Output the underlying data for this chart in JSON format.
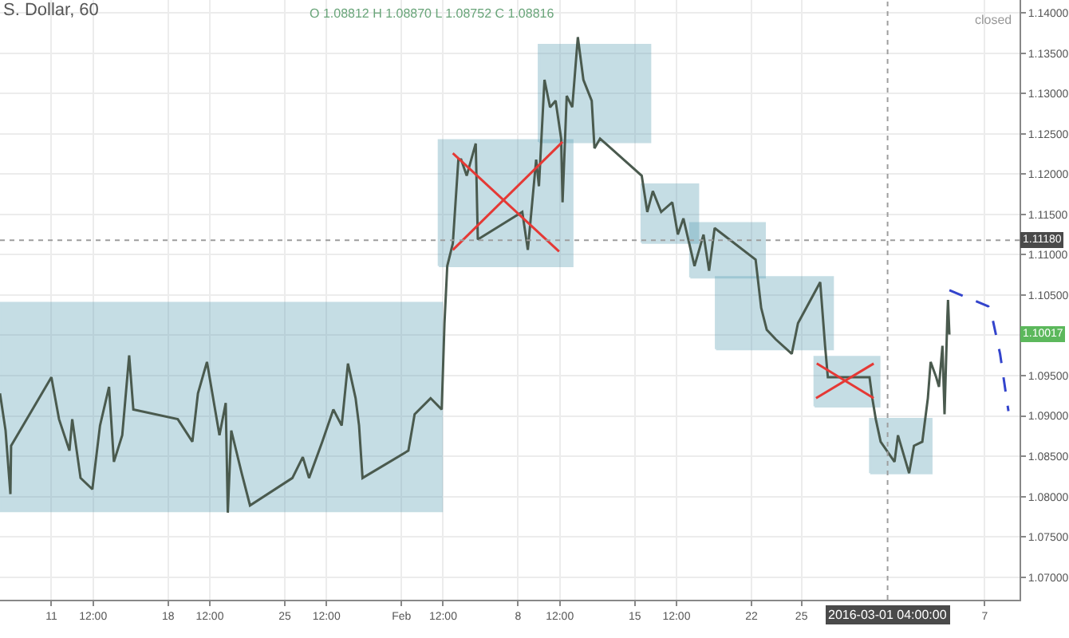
{
  "chart_data": {
    "type": "line",
    "title": "S. Dollar, 60",
    "annotations": [
      "O 1.08812 H 1.08870 L 1.08752 C 1.08816",
      "closed",
      "1.10017"
    ],
    "series": [
      {
        "color": "#4a5a4e",
        "x": [
          "2016-01-07T22:00",
          "2016-01-08T06:00",
          "2016-01-08T13:00",
          "2016-01-08T14:00",
          "2016-01-11T00:00",
          "2016-01-11T11:00",
          "2016-01-12T02:00",
          "2016-01-12T06:00",
          "2016-01-12T18:00",
          "2016-01-13T11:00",
          "2016-01-13T22:00",
          "2016-01-14T11:00",
          "2016-01-14T18:00",
          "2016-01-15T06:00",
          "2016-01-15T16:00",
          "2016-01-15T22:00",
          "2016-01-18T14:00",
          "2016-01-19T11:00",
          "2016-01-19T19:00",
          "2016-01-20T08:00",
          "2016-01-21T02:00",
          "2016-01-21T11:00",
          "2016-01-21T14:00",
          "2016-01-21T19:00",
          "2016-01-22T10:00",
          "2016-01-22T22:00",
          "2016-01-25T11:00",
          "2016-01-26T02:00",
          "2016-01-26T11:00",
          "2016-01-27T06:00",
          "2016-01-27T22:00",
          "2016-01-28T10:00",
          "2016-01-28T19:00",
          "2016-01-29T06:00",
          "2016-01-29T11:00",
          "2016-01-29T16:00",
          "2016-02-01T10:00",
          "2016-02-01T19:00",
          "2016-02-02T18:00",
          "2016-02-03T10:00",
          "2016-02-03T14:00",
          "2016-02-03T18:00",
          "2016-02-04T02:00",
          "2016-02-04T10:00",
          "2016-02-04T14:00",
          "2016-02-04T22:00",
          "2016-02-05T11:00",
          "2016-02-05T14:00",
          "2016-02-08T06:00",
          "2016-02-08T14:00",
          "2016-02-09T02:00",
          "2016-02-09T06:00",
          "2016-02-09T14:00",
          "2016-02-09T22:00",
          "2016-02-10T06:00",
          "2016-02-10T14:00",
          "2016-02-10T16:00",
          "2016-02-10T22:00",
          "2016-02-11T06:00",
          "2016-02-11T14:00",
          "2016-02-11T22:00",
          "2016-02-12T10:00",
          "2016-02-12T14:00",
          "2016-02-12T22:00",
          "2016-02-15T10:00",
          "2016-02-15T18:00",
          "2016-02-16T02:00",
          "2016-02-16T14:00",
          "2016-02-17T06:00",
          "2016-02-17T14:00",
          "2016-02-17T22:00",
          "2016-02-18T14:00",
          "2016-02-19T03:00",
          "2016-02-19T11:00",
          "2016-02-19T19:00",
          "2016-02-22T06:00",
          "2016-02-22T14:00",
          "2016-02-22T22:00",
          "2016-02-23T11:00",
          "2016-02-24T10:00",
          "2016-02-24T19:00",
          "2016-02-26T03:00",
          "2016-02-26T10:00",
          "2016-02-26T14:00",
          "2016-02-29T02:00",
          "2016-02-29T06:00",
          "2016-02-29T11:00",
          "2016-02-29T18:00",
          "2016-03-01T14:00",
          "2016-03-01T19:00",
          "2016-03-02T11:00",
          "2016-03-02T18:00",
          "2016-03-03T06:00",
          "2016-03-03T14:00",
          "2016-03-03T18:00",
          "2016-03-04T02:00",
          "2016-03-04T06:00",
          "2016-03-04T11:00",
          "2016-03-04T14:00",
          "2016-03-04T18:00",
          "2016-03-04T19:00",
          "2016-03-04T21:00"
        ],
        "values": [
          1.0928,
          1.0882,
          1.0803,
          1.0863,
          1.0948,
          1.0896,
          1.0857,
          1.0896,
          1.0823,
          1.0809,
          1.0888,
          1.0936,
          1.0843,
          1.0876,
          1.0975,
          1.0908,
          1.0896,
          1.0868,
          1.0928,
          1.0967,
          1.0876,
          1.0916,
          1.078,
          1.0882,
          1.0829,
          1.0789,
          1.0823,
          1.0849,
          1.0823,
          1.0868,
          1.0908,
          1.0888,
          1.0965,
          1.0922,
          1.0888,
          1.0823,
          1.0857,
          1.0902,
          1.0922,
          1.0908,
          1.1015,
          1.1086,
          1.1114,
          1.1218,
          1.1218,
          1.1198,
          1.1238,
          1.1119,
          1.1153,
          1.1106,
          1.1218,
          1.1185,
          1.1317,
          1.1283,
          1.1291,
          1.1244,
          1.1165,
          1.1297,
          1.1283,
          1.137,
          1.1317,
          1.1291,
          1.1232,
          1.1244,
          1.1198,
          1.1153,
          1.1179,
          1.1153,
          1.1165,
          1.1125,
          1.1145,
          1.1086,
          1.1125,
          1.108,
          1.1133,
          1.1094,
          1.1034,
          1.1007,
          1.0995,
          1.0977,
          1.1015,
          1.1066,
          1.0987,
          1.0948,
          1.0948,
          1.0922,
          1.0896,
          1.0868,
          1.0843,
          1.0876,
          1.0829,
          1.0863,
          1.0868,
          1.0922,
          1.0967,
          1.0948,
          1.0936,
          1.0987,
          1.0902,
          1.1021,
          1.1044,
          1.1001
        ]
      },
      {
        "color": "#e53935",
        "x": [
          "2016-02-04T02:00",
          "2016-02-10T11:00",
          null,
          "2016-02-04T02:00",
          "2016-02-10T16:00",
          null,
          "2016-02-25T22:00",
          "2016-02-29T08:00",
          null,
          "2016-02-25T21:00",
          "2016-02-29T08:00"
        ],
        "values": [
          1.1226,
          1.1104,
          null,
          1.1106,
          1.124,
          null,
          1.0965,
          1.0922,
          null,
          1.0922,
          1.0965
        ]
      },
      {
        "color": "#3344cc",
        "line_style": "dashed",
        "x": [
          "2016-03-04T21:00",
          "2016-03-07T05:00",
          "2016-03-07T11:00",
          "2016-03-07T22:00",
          "2016-03-08T10:00"
        ],
        "values": [
          1.1056,
          1.1036,
          1.1021,
          1.0977,
          1.0906
        ]
      },
      {
        "type": "area",
        "color": "#5b9fb5",
        "x": [
          "2016-01-07T22:00",
          "2016-02-03T10:00",
          "2016-02-03T10:00",
          "2016-01-07T22:00",
          "2016-01-07T22:00"
        ],
        "values": [
          1.0782,
          1.0782,
          1.104,
          1.104,
          1.0782
        ]
      },
      {
        "type": "area",
        "color": "#5b9fb5",
        "x": [
          "2016-02-03T06:00",
          "2016-02-11T06:00",
          "2016-02-11T06:00",
          "2016-02-03T06:00",
          "2016-02-03T06:00"
        ],
        "values": [
          1.1086,
          1.1086,
          1.1242,
          1.1242,
          1.1086
        ]
      },
      {
        "type": "area",
        "color": "#5b9fb5",
        "x": [
          "2016-02-09T06:00",
          "2016-02-15T22:00",
          "2016-02-15T22:00",
          "2016-02-09T06:00",
          "2016-02-09T06:00"
        ],
        "values": [
          1.124,
          1.124,
          1.136,
          1.136,
          1.124
        ]
      },
      {
        "type": "area",
        "color": "#5b9fb5",
        "x": [
          "2016-02-15T10:00",
          "2016-02-18T19:00",
          "2016-02-18T19:00",
          "2016-02-15T10:00",
          "2016-02-15T10:00"
        ],
        "values": [
          1.1115,
          1.1115,
          1.1187,
          1.1187,
          1.1115
        ]
      },
      {
        "type": "area",
        "color": "#5b9fb5",
        "x": [
          "2016-02-18T08:00",
          "2016-02-22T19:00",
          "2016-02-22T19:00",
          "2016-02-18T08:00",
          "2016-02-18T08:00"
        ],
        "values": [
          1.1072,
          1.1072,
          1.1139,
          1.1139,
          1.1072
        ]
      },
      {
        "type": "area",
        "color": "#5b9fb5",
        "x": [
          "2016-02-19T21:00",
          "2016-02-26T21:00",
          "2016-02-26T21:00",
          "2016-02-19T21:00",
          "2016-02-19T21:00"
        ],
        "values": [
          1.0983,
          1.0983,
          1.1072,
          1.1072,
          1.0983
        ]
      },
      {
        "type": "area",
        "color": "#5b9fb5",
        "x": [
          "2016-02-25T19:00",
          "2016-02-29T16:00",
          "2016-02-29T16:00",
          "2016-02-25T19:00",
          "2016-02-25T19:00"
        ],
        "values": [
          1.0912,
          1.0912,
          1.0973,
          1.0973,
          1.0912
        ]
      },
      {
        "type": "area",
        "color": "#5b9fb5",
        "x": [
          "2016-02-29T03:00",
          "2016-03-03T19:00",
          "2016-03-03T19:00",
          "2016-02-29T03:00",
          "2016-02-29T03:00"
        ],
        "values": [
          1.0829,
          1.0829,
          1.0896,
          1.0896,
          1.0829
        ]
      }
    ],
    "ref_lines": [
      {
        "axis": "y",
        "value": 1.1118,
        "label": "1.11180",
        "color": "#9e9e9e",
        "line_style": "dotted"
      },
      {
        "axis": "x",
        "value": "2016-03-01T04:00",
        "label": "2016-03-01 04:00:00",
        "color": "#9e9e9e",
        "line_style": "dotted"
      }
    ],
    "xlim": [
      "2016-01-07T22:00",
      "2016-03-09T02:00"
    ],
    "xticks": [
      {
        "value": "2016-01-11",
        "label": "11"
      },
      {
        "value": "2016-01-13T12:00",
        "label": "12:00"
      },
      {
        "value": "2016-01-18",
        "label": "18"
      },
      {
        "value": "2016-01-20T12:00",
        "label": "12:00"
      },
      {
        "value": "2016-01-25",
        "label": "25"
      },
      {
        "value": "2016-01-27T12:00",
        "label": "12:00"
      },
      {
        "value": "2016-02-01",
        "label": "Feb"
      },
      {
        "value": "2016-02-03T12:00",
        "label": "12:00"
      },
      {
        "value": "2016-02-08",
        "label": "8"
      },
      {
        "value": "2016-02-10T12:00",
        "label": "12:00"
      },
      {
        "value": "2016-02-15",
        "label": "15"
      },
      {
        "value": "2016-02-17T12:00",
        "label": "12:00"
      },
      {
        "value": "2016-02-22",
        "label": "22"
      },
      {
        "value": "2016-02-25",
        "label": "25"
      },
      {
        "value": "2016-03-07",
        "label": "7"
      }
    ],
    "ylim": [
      1.0672,
      1.1416
    ],
    "yticks": [
      {
        "value": 1.07,
        "label": "1.07000"
      },
      {
        "value": 1.075,
        "label": "1.07500"
      },
      {
        "value": 1.08,
        "label": "1.08000"
      },
      {
        "value": 1.085,
        "label": "1.08500"
      },
      {
        "value": 1.09,
        "label": "1.09000"
      },
      {
        "value": 1.095,
        "label": "1.09500"
      },
      {
        "value": 1.1,
        "label": null
      },
      {
        "value": 1.105,
        "label": "1.10500"
      },
      {
        "value": 1.11,
        "label": "1.11000"
      },
      {
        "value": 1.115,
        "label": "1.11500"
      },
      {
        "value": 1.12,
        "label": "1.12000"
      },
      {
        "value": 1.125,
        "label": "1.12500"
      },
      {
        "value": 1.13,
        "label": "1.13000"
      },
      {
        "value": 1.135,
        "label": "1.13500"
      },
      {
        "value": 1.14,
        "label": "1.14000"
      }
    ],
    "grid": true,
    "marker": "none",
    "line_style": "solid"
  }
}
